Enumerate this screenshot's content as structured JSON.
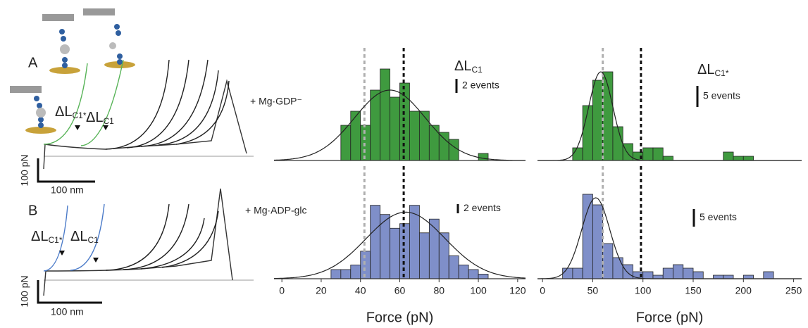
{
  "traces": {
    "top": {
      "panel": "A",
      "label_star": {
        "main": "ΔL",
        "sub": "C1*"
      },
      "label": {
        "main": "ΔL",
        "sub": "C1"
      },
      "force_scale": "100 pN",
      "distance_scale": "100 nm"
    },
    "bottom": {
      "panel": "B",
      "label_star": {
        "main": "ΔL",
        "sub": "C1*"
      },
      "label": {
        "main": "ΔL",
        "sub": "C1"
      },
      "force_scale": "100 pN",
      "distance_scale": "100 nm"
    }
  },
  "chart_data": [
    {
      "type": "histogram",
      "title": {
        "main": "ΔL",
        "sub": "C1"
      },
      "annotation": "+ Mg·GDP⁻",
      "color": "#3f9a3f",
      "bins": [
        30,
        35,
        40,
        45,
        50,
        55,
        60,
        65,
        70,
        75,
        80,
        85,
        90,
        95,
        100,
        105
      ],
      "counts": [
        5,
        7,
        5,
        10,
        13,
        9,
        11,
        7,
        7,
        5,
        4,
        3,
        0,
        0,
        1
      ],
      "xlim": [
        -4,
        124
      ],
      "ylim": [
        0,
        15
      ],
      "scale_bar": {
        "value": 2,
        "label": "2 events"
      },
      "fit": {
        "mean": 55,
        "sd": 18,
        "peak": 10
      },
      "reference_lines": [
        {
          "value": 42,
          "color": "#b0b0b0"
        },
        {
          "value": 62,
          "color": "#111111"
        }
      ]
    },
    {
      "type": "histogram",
      "title": {
        "main": "ΔL",
        "sub": "C1*"
      },
      "color": "#3f9a3f",
      "bins": [
        30,
        40,
        50,
        60,
        70,
        80,
        90,
        100,
        110,
        120,
        130,
        140,
        150,
        160,
        170,
        180,
        190,
        200,
        210
      ],
      "counts": [
        3,
        13,
        19,
        21,
        8,
        4,
        2,
        3,
        3,
        1,
        0,
        0,
        0,
        0,
        0,
        2,
        1,
        1
      ],
      "xlim": [
        -5,
        258
      ],
      "ylim": [
        0,
        25
      ],
      "scale_bar": {
        "value": 5,
        "label": "5 events"
      },
      "fit": {
        "mean": 58,
        "sd": 12,
        "peak": 21
      },
      "reference_lines": [
        {
          "value": 60,
          "color": "#b0b0b0"
        },
        {
          "value": 98,
          "color": "#111111"
        }
      ]
    },
    {
      "type": "histogram",
      "annotation": "+ Mg·ADP-glc",
      "color": "#7f8fc9",
      "bins": [
        25,
        30,
        35,
        40,
        45,
        50,
        55,
        60,
        65,
        70,
        75,
        80,
        85,
        90,
        95,
        100,
        105
      ],
      "counts": [
        2,
        2,
        3,
        6,
        16,
        14,
        11,
        12,
        16,
        10,
        13,
        10,
        5,
        3,
        2,
        1
      ],
      "xlim": [
        -4,
        124
      ],
      "ylim": [
        0,
        23
      ],
      "xticks": [
        0,
        20,
        40,
        60,
        80,
        100,
        120
      ],
      "xlabel": "Force (pN)",
      "scale_bar": {
        "value": 2,
        "label": "2 events"
      },
      "fit": {
        "mean": 63,
        "sd": 20,
        "peak": 14.5
      },
      "reference_lines": [
        {
          "value": 42,
          "color": "#b0b0b0"
        },
        {
          "value": 62,
          "color": "#111111"
        }
      ]
    },
    {
      "type": "histogram",
      "color": "#7f8fc9",
      "bins": [
        20,
        30,
        40,
        50,
        60,
        70,
        80,
        90,
        100,
        110,
        120,
        130,
        140,
        150,
        160,
        170,
        180,
        190,
        200,
        210,
        220,
        230
      ],
      "counts": [
        3,
        3,
        24,
        21,
        10,
        6,
        4,
        2,
        2,
        1,
        3,
        4,
        3,
        2,
        0,
        1,
        1,
        0,
        1,
        0,
        2
      ],
      "xlim": [
        -5,
        258
      ],
      "ylim": [
        0,
        30
      ],
      "xticks": [
        0,
        50,
        100,
        150,
        200,
        250
      ],
      "xlabel": "Force (pN)",
      "scale_bar": {
        "value": 5,
        "label": "5 events"
      },
      "fit": {
        "mean": 53,
        "sd": 14,
        "peak": 23
      },
      "reference_lines": [
        {
          "value": 60,
          "color": "#b0b0b0"
        },
        {
          "value": 98,
          "color": "#111111"
        }
      ]
    }
  ]
}
